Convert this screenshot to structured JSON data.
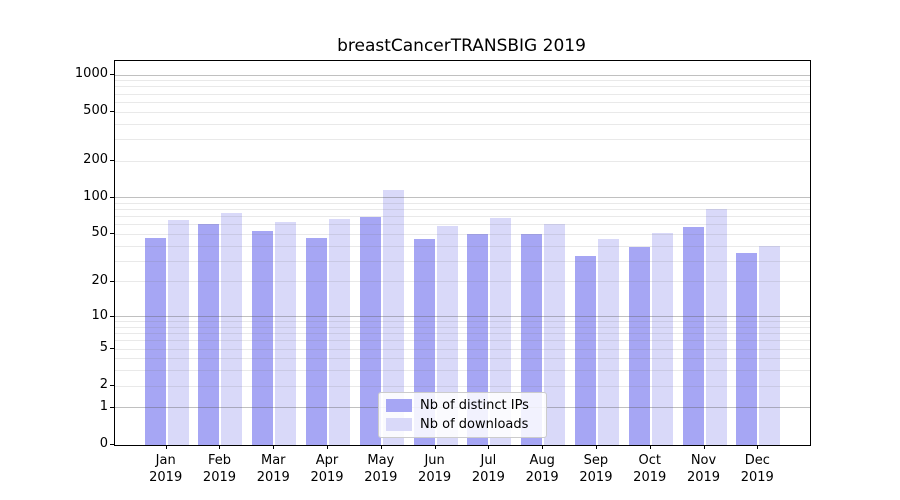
{
  "chart_data": {
    "type": "bar",
    "title": "breastCancerTRANSBIG 2019",
    "categories": [
      "Jan 2019",
      "Feb 2019",
      "Mar 2019",
      "Apr 2019",
      "May 2019",
      "Jun 2019",
      "Jul 2019",
      "Aug 2019",
      "Sep 2019",
      "Oct 2019",
      "Nov 2019",
      "Dec 2019"
    ],
    "x_tick_months": [
      "Jan",
      "Feb",
      "Mar",
      "Apr",
      "May",
      "Jun",
      "Jul",
      "Aug",
      "Sep",
      "Oct",
      "Nov",
      "Dec"
    ],
    "x_tick_year": "2019",
    "series": [
      {
        "name": "Nb of distinct IPs",
        "color": "#a6a6f4",
        "values": [
          47,
          61,
          53,
          47,
          70,
          46,
          50,
          50,
          33,
          39,
          58,
          35
        ]
      },
      {
        "name": "Nb of downloads",
        "color": "#d9d9f9",
        "values": [
          66,
          75,
          63,
          67,
          116,
          59,
          68,
          61,
          46,
          51,
          81,
          40
        ]
      }
    ],
    "xlabel": "",
    "ylabel": "",
    "y_scale": "log1p",
    "ylim": [
      0,
      1300
    ],
    "y_ticks": [
      0,
      1,
      2,
      5,
      10,
      20,
      50,
      100,
      200,
      500,
      1000
    ],
    "grid": "on",
    "grid_major_values": [
      1,
      10,
      100,
      1000
    ],
    "grid_minor_values": [
      2,
      3,
      4,
      5,
      6,
      7,
      8,
      9,
      20,
      30,
      40,
      50,
      60,
      70,
      80,
      90,
      200,
      300,
      400,
      500,
      600,
      700,
      800,
      900
    ],
    "legend_position": "inside-bottom-center"
  }
}
